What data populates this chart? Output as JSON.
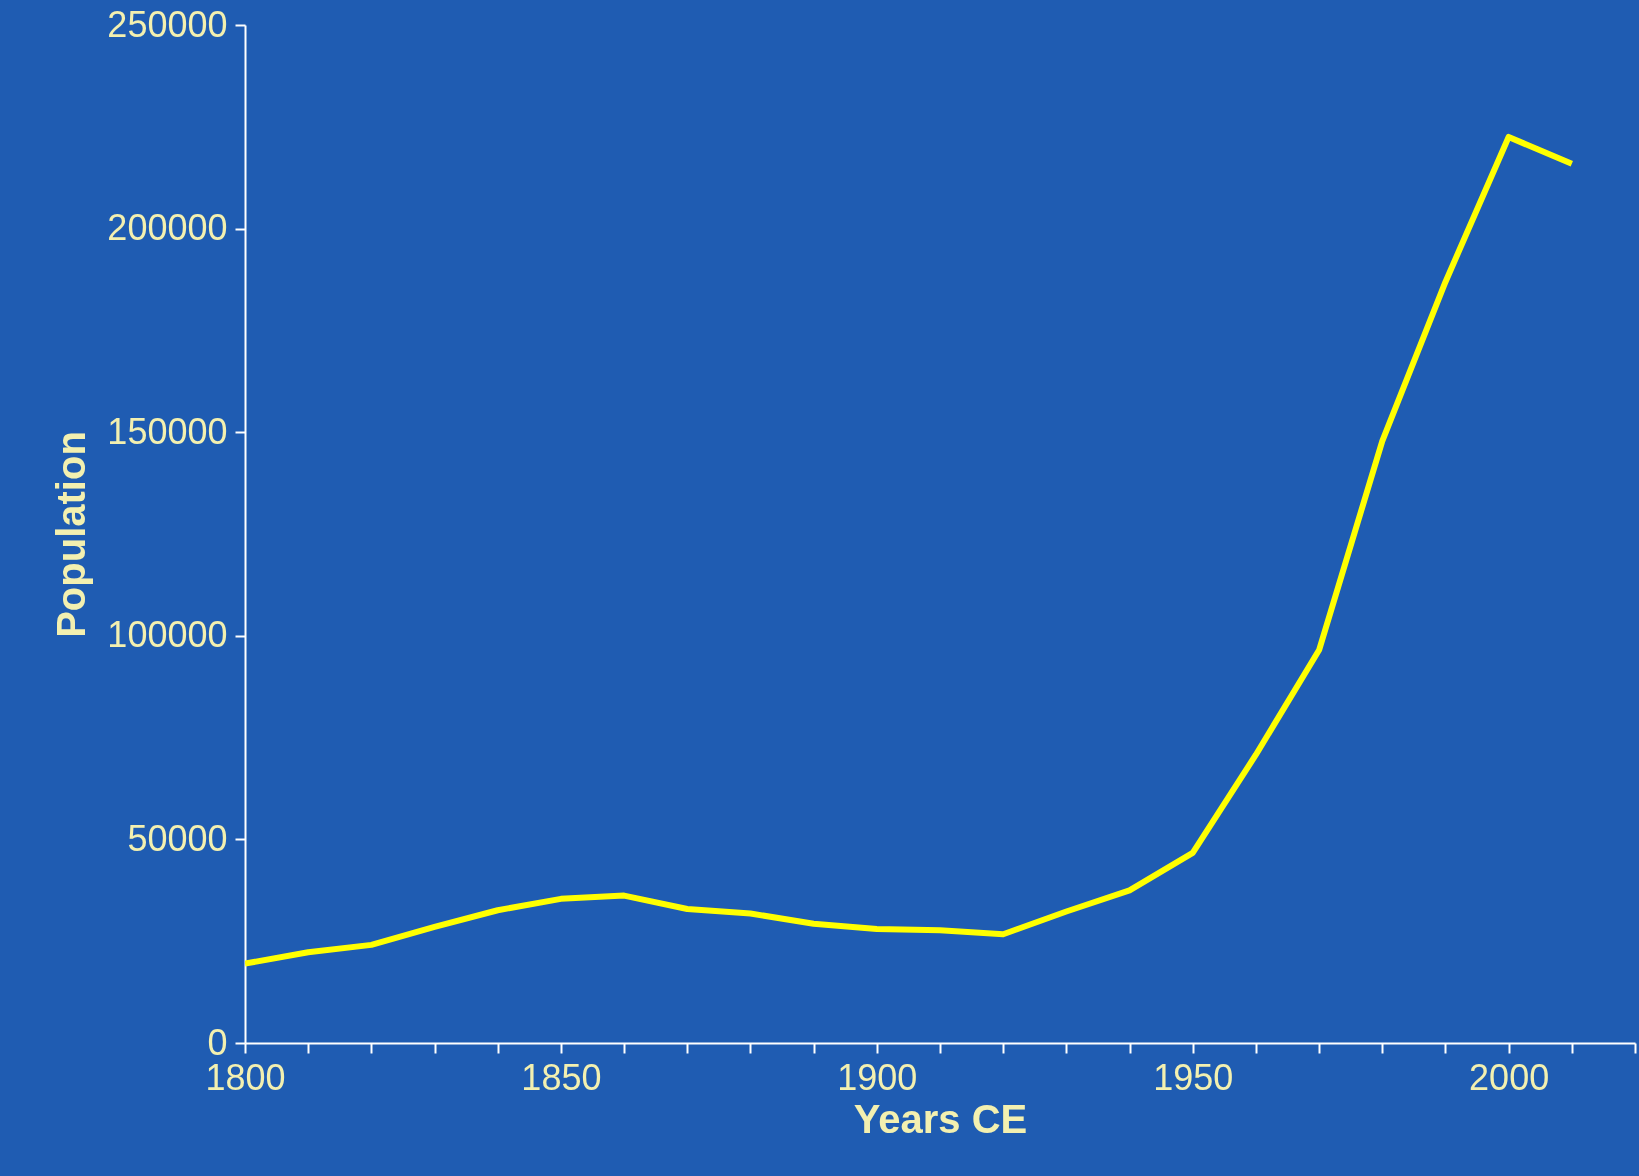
{
  "chart_data": {
    "type": "line",
    "xlabel": "Years CE",
    "ylabel": "Population",
    "x": [
      1800,
      1810,
      1820,
      1830,
      1840,
      1850,
      1860,
      1870,
      1880,
      1890,
      1900,
      1910,
      1920,
      1930,
      1940,
      1950,
      1960,
      1970,
      1980,
      1990,
      2000,
      2010
    ],
    "series": [
      {
        "color": "#ffff00",
        "values": [
          19500,
          22300,
          24100,
          28500,
          32600,
          35400,
          36200,
          32900,
          31800,
          29300,
          28000,
          27700,
          26700,
          32300,
          37500,
          46700,
          70800,
          96500,
          147800,
          186900,
          222500,
          215900
        ]
      }
    ],
    "xlim": [
      1800,
      2020
    ],
    "xticks": [
      1800,
      {
        "value": 1810,
        "label": null
      },
      {
        "value": 1820,
        "label": null
      },
      {
        "value": 1830,
        "label": null
      },
      {
        "value": 1840,
        "label": null
      },
      1850,
      {
        "value": 1860,
        "label": null
      },
      {
        "value": 1870,
        "label": null
      },
      {
        "value": 1880,
        "label": null
      },
      {
        "value": 1890,
        "label": null
      },
      1900,
      {
        "value": 1910,
        "label": null
      },
      {
        "value": 1920,
        "label": null
      },
      {
        "value": 1930,
        "label": null
      },
      {
        "value": 1940,
        "label": null
      },
      1950,
      {
        "value": 1960,
        "label": null
      },
      {
        "value": 1970,
        "label": null
      },
      {
        "value": 1980,
        "label": null
      },
      {
        "value": 1990,
        "label": null
      },
      2000,
      {
        "value": 2010,
        "label": null
      },
      {
        "value": 2020,
        "label": null
      }
    ],
    "ylim": [
      0,
      250000
    ],
    "yticks": [
      0,
      50000,
      100000,
      150000,
      200000,
      250000
    ],
    "grid": false,
    "marker": "none",
    "line_style": "solid"
  }
}
